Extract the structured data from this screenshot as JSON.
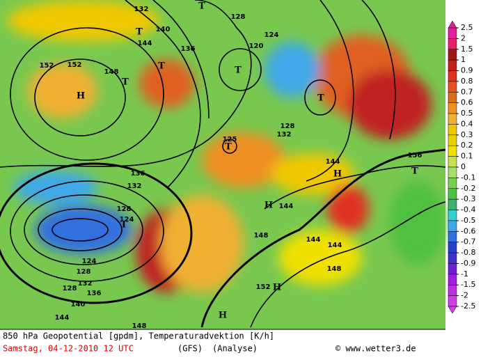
{
  "map": {
    "labels": [
      "132",
      "140",
      "144",
      "136",
      "152",
      "148",
      "128",
      "124",
      "120",
      "128",
      "124",
      "132",
      "125",
      "128",
      "144",
      "144",
      "144",
      "144",
      "152",
      "148",
      "136",
      "132",
      "128",
      "124",
      "128",
      "132",
      "136",
      "140",
      "144",
      "148",
      "156",
      "152",
      "148",
      "H",
      "H",
      "H",
      "H",
      "H",
      "T",
      "T",
      "T",
      "T",
      "T",
      "T",
      "T",
      "T",
      "T"
    ]
  },
  "colorbar": {
    "ticks": [
      2.5,
      2,
      1.5,
      1,
      0.9,
      0.8,
      0.7,
      0.6,
      0.5,
      0.4,
      0.3,
      0.2,
      0.1,
      0,
      -0.1,
      -0.2,
      -0.3,
      -0.4,
      -0.5,
      -0.6,
      -0.7,
      -0.8,
      -0.9,
      -1,
      -1.5,
      -2,
      -2.5
    ],
    "colors": [
      "#e0209a",
      "#e8206a",
      "#a01818",
      "#c02020",
      "#e03020",
      "#e85020",
      "#d87018",
      "#f09020",
      "#f0b030",
      "#f0c800",
      "#e8d000",
      "#f0e000",
      "#c8e050",
      "#a8e070",
      "#78d050",
      "#50c040",
      "#40b070",
      "#30d0d0",
      "#40a8e8",
      "#3070e0",
      "#2840c8",
      "#4030c8",
      "#7020d0",
      "#a020e0",
      "#c030e0",
      "#d040e0"
    ]
  },
  "footer": {
    "line1": "850 hPa Geopotential [gpdm], Temperaturadvektion [K/h]",
    "date": "Samstag, 04-12-2010  12 UTC",
    "model": "(GFS)",
    "kind": "(Analyse)",
    "credit": "© www.wetter3.de"
  }
}
